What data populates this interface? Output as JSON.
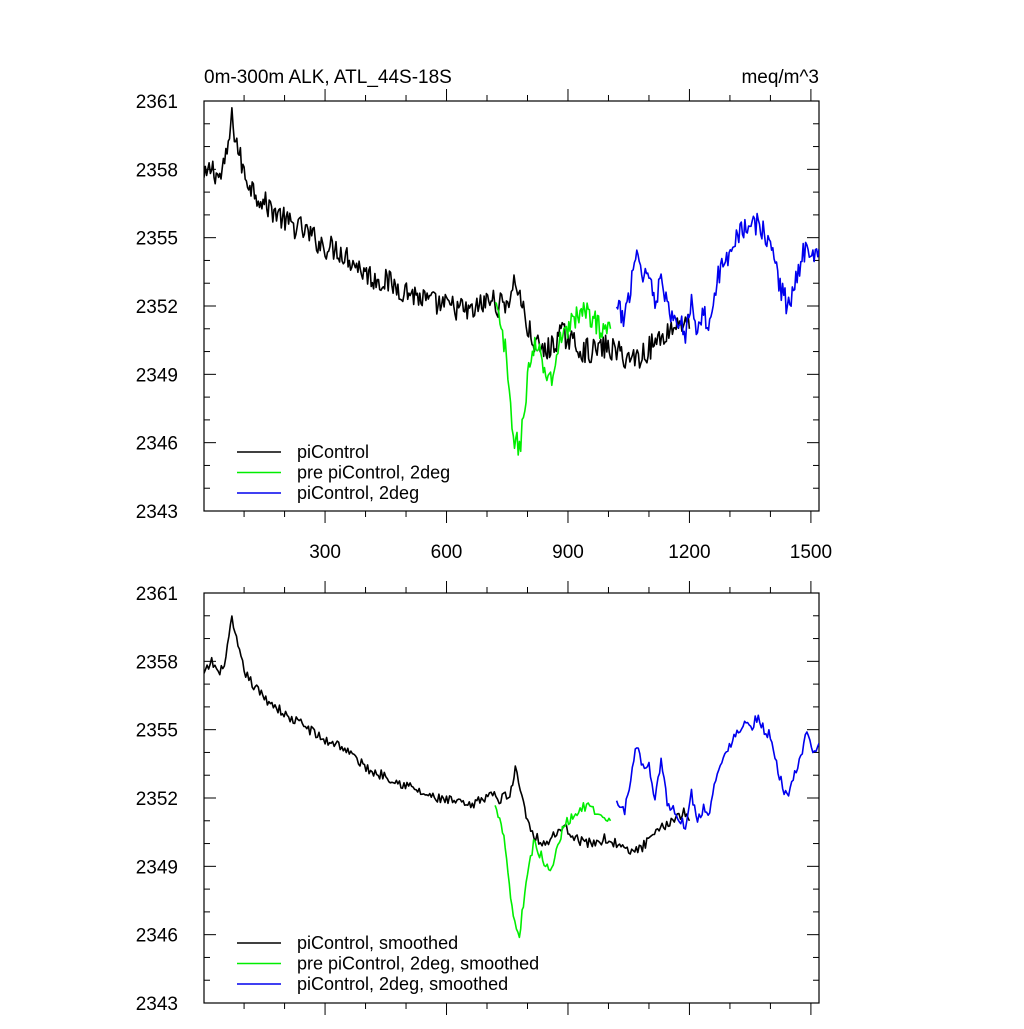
{
  "chart_data": [
    {
      "type": "line",
      "title": "0m-300m ALK, ATL_44S-18S",
      "units": "meq/m^3",
      "xlabel": "",
      "ylabel": "",
      "xlim": [
        1,
        1520
      ],
      "ylim": [
        2343,
        2361
      ],
      "x_ticks": [
        300,
        600,
        900,
        1200,
        1500
      ],
      "y_ticks": [
        2343,
        2346,
        2349,
        2352,
        2355,
        2358,
        2361
      ],
      "legend_position": "bottom-left",
      "series": [
        {
          "name": "piControl",
          "color": "#000000",
          "style": "raw",
          "points": [
            [
              1,
              2357.5
            ],
            [
              20,
              2358.1
            ],
            [
              40,
              2357.6
            ],
            [
              55,
              2358.4
            ],
            [
              70,
              2360.2
            ],
            [
              85,
              2358.9
            ],
            [
              100,
              2357.8
            ],
            [
              120,
              2357.2
            ],
            [
              150,
              2356.5
            ],
            [
              180,
              2356.1
            ],
            [
              210,
              2355.6
            ],
            [
              240,
              2355.4
            ],
            [
              270,
              2355.0
            ],
            [
              300,
              2354.6
            ],
            [
              330,
              2354.5
            ],
            [
              360,
              2354.1
            ],
            [
              390,
              2353.6
            ],
            [
              420,
              2353.2
            ],
            [
              450,
              2353.1
            ],
            [
              480,
              2352.8
            ],
            [
              510,
              2352.6
            ],
            [
              540,
              2352.3
            ],
            [
              570,
              2352.1
            ],
            [
              600,
              2352.0
            ],
            [
              630,
              2351.9
            ],
            [
              660,
              2351.7
            ],
            [
              690,
              2352.1
            ],
            [
              710,
              2352.3
            ],
            [
              730,
              2352.0
            ],
            [
              760,
              2352.4
            ],
            [
              770,
              2353.2
            ],
            [
              790,
              2351.8
            ],
            [
              800,
              2351.0
            ],
            [
              820,
              2350.3
            ],
            [
              840,
              2350.0
            ],
            [
              860,
              2350.2
            ],
            [
              880,
              2350.8
            ],
            [
              900,
              2350.6
            ],
            [
              930,
              2350.1
            ],
            [
              960,
              2350.0
            ],
            [
              990,
              2350.2
            ],
            [
              1020,
              2350.0
            ],
            [
              1050,
              2349.7
            ],
            [
              1080,
              2349.8
            ],
            [
              1110,
              2350.3
            ],
            [
              1140,
              2350.8
            ],
            [
              1170,
              2351.2
            ],
            [
              1190,
              2351.4
            ],
            [
              1200,
              2351.0
            ]
          ]
        },
        {
          "name": "pre piControl, 2deg",
          "color": "#00ee00",
          "style": "raw",
          "points": [
            [
              720,
              2352.0
            ],
            [
              735,
              2351.0
            ],
            [
              745,
              2350.0
            ],
            [
              755,
              2348.0
            ],
            [
              765,
              2346.4
            ],
            [
              780,
              2345.6
            ],
            [
              790,
              2347.2
            ],
            [
              800,
              2348.8
            ],
            [
              815,
              2350.2
            ],
            [
              830,
              2349.8
            ],
            [
              845,
              2349.0
            ],
            [
              860,
              2348.8
            ],
            [
              875,
              2350.0
            ],
            [
              890,
              2351.0
            ],
            [
              905,
              2351.2
            ],
            [
              915,
              2351.4
            ],
            [
              930,
              2351.6
            ],
            [
              950,
              2351.8
            ],
            [
              970,
              2351.2
            ],
            [
              990,
              2351.0
            ],
            [
              1005,
              2351.0
            ]
          ]
        },
        {
          "name": "piControl, 2deg",
          "color": "#0000ee",
          "style": "raw",
          "points": [
            [
              1020,
              2351.8
            ],
            [
              1040,
              2351.5
            ],
            [
              1055,
              2353.0
            ],
            [
              1070,
              2354.5
            ],
            [
              1085,
              2353.4
            ],
            [
              1100,
              2353.5
            ],
            [
              1115,
              2352.0
            ],
            [
              1130,
              2353.8
            ],
            [
              1145,
              2351.8
            ],
            [
              1160,
              2351.5
            ],
            [
              1175,
              2351.2
            ],
            [
              1190,
              2350.9
            ],
            [
              1205,
              2352.3
            ],
            [
              1220,
              2351.0
            ],
            [
              1235,
              2351.6
            ],
            [
              1250,
              2351.4
            ],
            [
              1265,
              2353.0
            ],
            [
              1280,
              2353.6
            ],
            [
              1295,
              2354.3
            ],
            [
              1310,
              2355.0
            ],
            [
              1325,
              2355.3
            ],
            [
              1340,
              2355.5
            ],
            [
              1355,
              2355.3
            ],
            [
              1370,
              2355.8
            ],
            [
              1385,
              2355.1
            ],
            [
              1400,
              2354.8
            ],
            [
              1415,
              2353.6
            ],
            [
              1430,
              2352.5
            ],
            [
              1445,
              2352.0
            ],
            [
              1460,
              2353.0
            ],
            [
              1475,
              2353.7
            ],
            [
              1490,
              2355.0
            ],
            [
              1505,
              2354.2
            ],
            [
              1520,
              2354.5
            ]
          ]
        }
      ]
    },
    {
      "type": "line",
      "title": "",
      "units": "",
      "xlabel": "",
      "ylabel": "",
      "xlim": [
        1,
        1520
      ],
      "ylim": [
        2343,
        2361
      ],
      "x_ticks": [
        300,
        600,
        900,
        1200,
        1500
      ],
      "y_ticks": [
        2343,
        2346,
        2349,
        2352,
        2355,
        2358,
        2361
      ],
      "legend_position": "bottom-left",
      "series": [
        {
          "name": "piControl, smoothed",
          "color": "#000000",
          "style": "smooth",
          "points": [
            [
              1,
              2357.4
            ],
            [
              20,
              2358.0
            ],
            [
              40,
              2357.4
            ],
            [
              55,
              2358.2
            ],
            [
              70,
              2359.8
            ],
            [
              85,
              2358.6
            ],
            [
              100,
              2357.6
            ],
            [
              120,
              2357.0
            ],
            [
              150,
              2356.4
            ],
            [
              180,
              2356.0
            ],
            [
              210,
              2355.5
            ],
            [
              240,
              2355.3
            ],
            [
              270,
              2354.9
            ],
            [
              300,
              2354.5
            ],
            [
              330,
              2354.4
            ],
            [
              360,
              2354.0
            ],
            [
              390,
              2353.5
            ],
            [
              420,
              2353.1
            ],
            [
              450,
              2353.0
            ],
            [
              480,
              2352.7
            ],
            [
              510,
              2352.5
            ],
            [
              540,
              2352.2
            ],
            [
              570,
              2352.0
            ],
            [
              600,
              2351.9
            ],
            [
              630,
              2351.8
            ],
            [
              660,
              2351.6
            ],
            [
              690,
              2352.0
            ],
            [
              710,
              2352.2
            ],
            [
              730,
              2351.9
            ],
            [
              760,
              2352.3
            ],
            [
              770,
              2353.3
            ],
            [
              790,
              2351.9
            ],
            [
              800,
              2351.0
            ],
            [
              820,
              2350.3
            ],
            [
              840,
              2350.0
            ],
            [
              860,
              2350.2
            ],
            [
              880,
              2350.7
            ],
            [
              900,
              2350.6
            ],
            [
              930,
              2350.1
            ],
            [
              960,
              2350.0
            ],
            [
              990,
              2350.2
            ],
            [
              1020,
              2350.0
            ],
            [
              1050,
              2349.6
            ],
            [
              1080,
              2349.8
            ],
            [
              1110,
              2350.3
            ],
            [
              1140,
              2350.8
            ],
            [
              1170,
              2351.2
            ],
            [
              1190,
              2351.4
            ],
            [
              1200,
              2351.0
            ]
          ]
        },
        {
          "name": "pre piControl, 2deg, smoothed",
          "color": "#00ee00",
          "style": "smooth",
          "points": [
            [
              720,
              2351.6
            ],
            [
              735,
              2351.0
            ],
            [
              745,
              2350.0
            ],
            [
              755,
              2348.2
            ],
            [
              765,
              2346.8
            ],
            [
              780,
              2345.9
            ],
            [
              790,
              2347.4
            ],
            [
              800,
              2348.8
            ],
            [
              815,
              2350.0
            ],
            [
              830,
              2349.6
            ],
            [
              845,
              2349.0
            ],
            [
              860,
              2348.8
            ],
            [
              875,
              2349.9
            ],
            [
              890,
              2350.8
            ],
            [
              905,
              2351.1
            ],
            [
              915,
              2351.3
            ],
            [
              930,
              2351.5
            ],
            [
              950,
              2351.7
            ],
            [
              970,
              2351.2
            ],
            [
              990,
              2351.0
            ],
            [
              1005,
              2351.0
            ]
          ]
        },
        {
          "name": "piControl, 2deg, smoothed",
          "color": "#0000ee",
          "style": "smooth",
          "points": [
            [
              1020,
              2351.8
            ],
            [
              1040,
              2351.4
            ],
            [
              1055,
              2352.9
            ],
            [
              1070,
              2354.4
            ],
            [
              1085,
              2353.3
            ],
            [
              1100,
              2353.4
            ],
            [
              1115,
              2352.0
            ],
            [
              1130,
              2353.7
            ],
            [
              1145,
              2351.8
            ],
            [
              1160,
              2351.5
            ],
            [
              1175,
              2351.1
            ],
            [
              1190,
              2350.8
            ],
            [
              1205,
              2352.2
            ],
            [
              1220,
              2351.0
            ],
            [
              1235,
              2351.6
            ],
            [
              1250,
              2351.4
            ],
            [
              1265,
              2352.9
            ],
            [
              1280,
              2353.5
            ],
            [
              1295,
              2354.1
            ],
            [
              1310,
              2354.8
            ],
            [
              1325,
              2355.1
            ],
            [
              1340,
              2355.3
            ],
            [
              1355,
              2355.2
            ],
            [
              1370,
              2355.6
            ],
            [
              1385,
              2355.0
            ],
            [
              1400,
              2354.7
            ],
            [
              1415,
              2353.5
            ],
            [
              1430,
              2352.5
            ],
            [
              1445,
              2352.0
            ],
            [
              1460,
              2353.0
            ],
            [
              1475,
              2353.7
            ],
            [
              1490,
              2354.9
            ],
            [
              1505,
              2354.1
            ],
            [
              1520,
              2354.4
            ]
          ]
        }
      ]
    }
  ]
}
